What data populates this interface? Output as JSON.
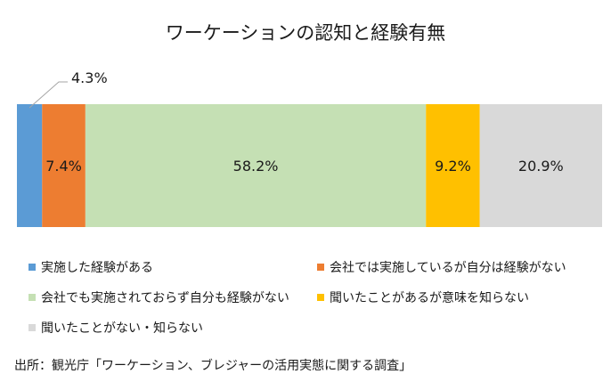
{
  "chart_data": {
    "type": "bar",
    "orientation": "horizontal",
    "stacked": true,
    "title": "ワーケーションの認知と経験有無",
    "series": [
      {
        "name": "実施した経験がある",
        "value": 4.3,
        "label": "4.3%",
        "color": "#5b9bd5",
        "label_color": "#1a1a1a"
      },
      {
        "name": "会社では実施しているが自分は経験がない",
        "value": 7.4,
        "label": "7.4%",
        "color": "#ed7d31",
        "label_color": "#1a1a1a"
      },
      {
        "name": "会社でも実施されておらず自分も経験がない",
        "value": 58.2,
        "label": "58.2%",
        "color": "#c5e0b4",
        "label_color": "#1a1a1a"
      },
      {
        "name": "聞いたことがあるが意味を知らない",
        "value": 9.2,
        "label": "9.2%",
        "color": "#ffc000",
        "label_color": "#1a1a1a"
      },
      {
        "name": "聞いたことがない・知らない",
        "value": 20.9,
        "label": "20.9%",
        "color": "#d9d9d9",
        "label_color": "#1a1a1a"
      }
    ],
    "xlim": [
      0,
      100
    ],
    "legend_position": "bottom"
  },
  "source": "出所：観光庁「ワーケーション、ブレジャーの活用実態に関する調査」"
}
